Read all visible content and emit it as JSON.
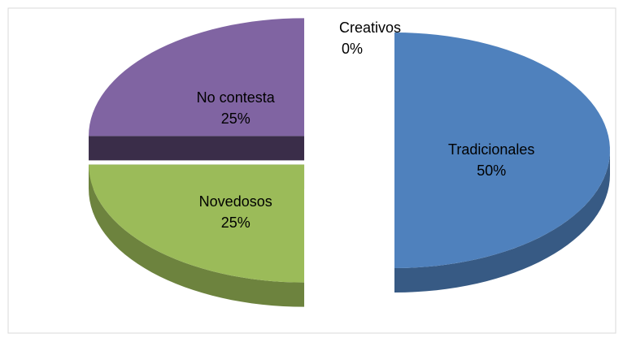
{
  "chart_data": {
    "type": "pie",
    "categories": [
      "Tradicionales",
      "Novedosos",
      "No contesta",
      "Creativos"
    ],
    "values": [
      50,
      25,
      25,
      0
    ],
    "value_labels": [
      "50%",
      "25%",
      "25%",
      "0%"
    ],
    "colors": [
      "#4f81bd",
      "#9bbb59",
      "#8064a2",
      "#c0504d"
    ]
  }
}
